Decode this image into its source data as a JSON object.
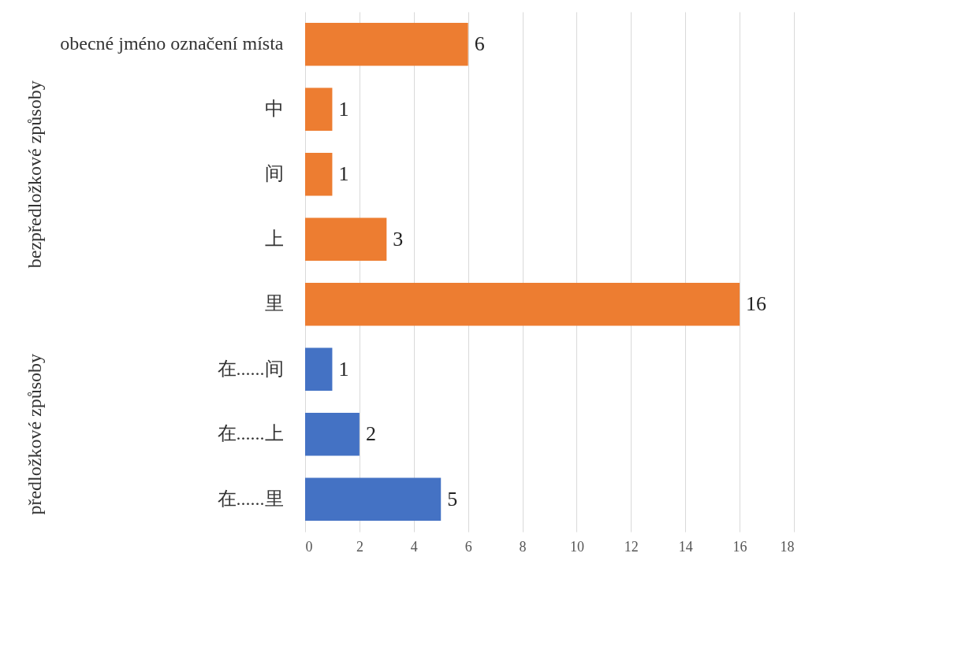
{
  "chart_data": {
    "type": "bar",
    "orientation": "horizontal",
    "categories": [
      "obecné jméno označení místa",
      "中",
      "间",
      "上",
      "里",
      "在......间",
      "在......上",
      "在......里"
    ],
    "values": [
      6,
      1,
      1,
      3,
      16,
      1,
      2,
      5
    ],
    "colors": [
      "#ed7d31",
      "#ed7d31",
      "#ed7d31",
      "#ed7d31",
      "#ed7d31",
      "#4472c4",
      "#4472c4",
      "#4472c4"
    ],
    "xlim": [
      0,
      18
    ],
    "xticks": [
      0,
      2,
      4,
      6,
      8,
      10,
      12,
      14,
      16,
      18
    ],
    "grid": "x",
    "data_labels": true,
    "annotations": [
      "bezpředložkové způsoby",
      "předložkové způsoby"
    ]
  }
}
